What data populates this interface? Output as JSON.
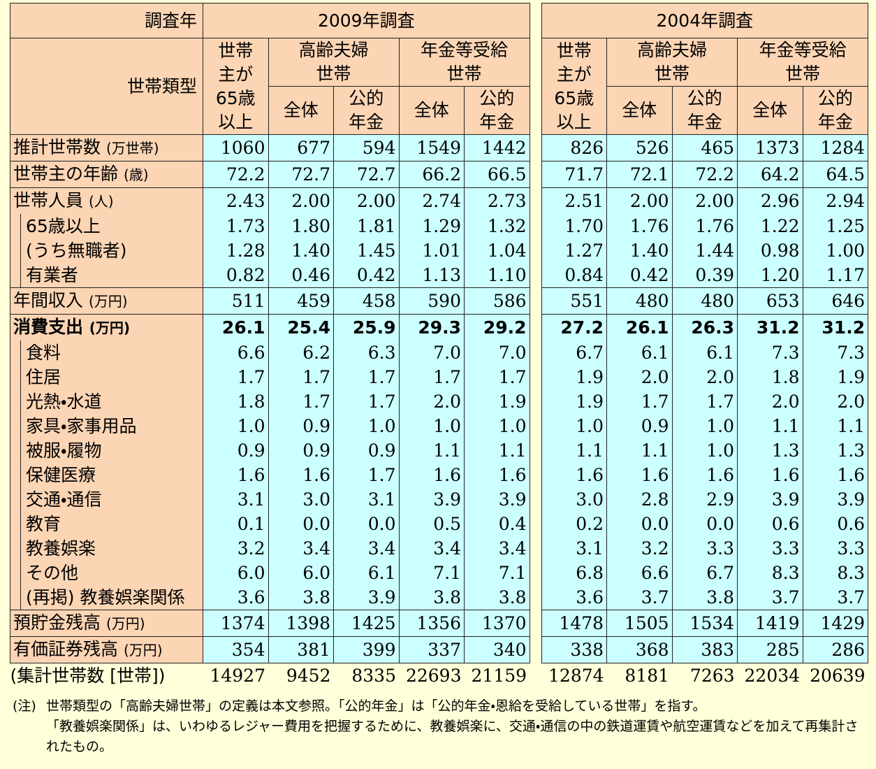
{
  "table": {
    "header": {
      "survey_year": "調査年",
      "year_2009": "2009年調査",
      "year_2004": "2004年調査",
      "type": "世帯類型",
      "groups": [
        "世帯\n主が\n65歳\n以上",
        "高齢夫婦\n世帯",
        "年金等受給\n世帯"
      ],
      "subs": [
        "全体",
        "公的\n年金"
      ]
    },
    "rows": [
      {
        "label": "推計世帯数",
        "unit": "(万世帯)",
        "values": [
          "1060",
          "677",
          "594",
          "1549",
          "1442",
          "826",
          "526",
          "465",
          "1373",
          "1284"
        ]
      },
      {
        "label": "世帯主の年齢",
        "unit": "(歳)",
        "values": [
          "72.2",
          "72.7",
          "72.7",
          "66.2",
          "66.5",
          "71.7",
          "72.1",
          "72.2",
          "64.2",
          "64.5"
        ]
      },
      {
        "label": "世帯人員",
        "unit": "(人)",
        "values": [
          "2.43",
          "2.00",
          "2.00",
          "2.74",
          "2.73",
          "2.51",
          "2.00",
          "2.00",
          "2.96",
          "2.94"
        ],
        "breakdown": [
          {
            "label": "65歳以上",
            "values": [
              "1.73",
              "1.80",
              "1.81",
              "1.29",
              "1.32",
              "1.70",
              "1.76",
              "1.76",
              "1.22",
              "1.25"
            ]
          },
          {
            "label": "(うち無職者)",
            "values": [
              "1.28",
              "1.40",
              "1.45",
              "1.01",
              "1.04",
              "1.27",
              "1.40",
              "1.44",
              "0.98",
              "1.00"
            ]
          },
          {
            "label": "有業者",
            "values": [
              "0.82",
              "0.46",
              "0.42",
              "1.13",
              "1.10",
              "0.84",
              "0.42",
              "0.39",
              "1.20",
              "1.17"
            ]
          }
        ]
      },
      {
        "label": "年間収入",
        "unit": "(万円)",
        "values": [
          "511",
          "459",
          "458",
          "590",
          "586",
          "551",
          "480",
          "480",
          "653",
          "646"
        ]
      },
      {
        "label": "消費支出",
        "unit": "(万円)",
        "bold": true,
        "values": [
          "26.1",
          "25.4",
          "25.9",
          "29.3",
          "29.2",
          "27.2",
          "26.1",
          "26.3",
          "31.2",
          "31.2"
        ],
        "breakdown": [
          {
            "label": "食料",
            "values": [
              "6.6",
              "6.2",
              "6.3",
              "7.0",
              "7.0",
              "6.7",
              "6.1",
              "6.1",
              "7.3",
              "7.3"
            ]
          },
          {
            "label": "住居",
            "values": [
              "1.7",
              "1.7",
              "1.7",
              "1.7",
              "1.7",
              "1.9",
              "2.0",
              "2.0",
              "1.8",
              "1.9"
            ]
          },
          {
            "label": "光熱・水道",
            "values": [
              "1.8",
              "1.7",
              "1.7",
              "2.0",
              "1.9",
              "1.9",
              "1.7",
              "1.7",
              "2.0",
              "2.0"
            ]
          },
          {
            "label": "家具・家事用品",
            "values": [
              "1.0",
              "0.9",
              "1.0",
              "1.0",
              "1.0",
              "1.0",
              "0.9",
              "1.0",
              "1.1",
              "1.1"
            ]
          },
          {
            "label": "被服・履物",
            "values": [
              "0.9",
              "0.9",
              "0.9",
              "1.1",
              "1.1",
              "1.1",
              "1.1",
              "1.0",
              "1.3",
              "1.3"
            ]
          },
          {
            "label": "保健医療",
            "values": [
              "1.6",
              "1.6",
              "1.7",
              "1.6",
              "1.6",
              "1.6",
              "1.6",
              "1.6",
              "1.6",
              "1.6"
            ]
          },
          {
            "label": "交通・通信",
            "values": [
              "3.1",
              "3.0",
              "3.1",
              "3.9",
              "3.9",
              "3.0",
              "2.8",
              "2.9",
              "3.9",
              "3.9"
            ]
          },
          {
            "label": "教育",
            "values": [
              "0.1",
              "0.0",
              "0.0",
              "0.5",
              "0.4",
              "0.2",
              "0.0",
              "0.0",
              "0.6",
              "0.6"
            ]
          },
          {
            "label": "教養娯楽",
            "values": [
              "3.2",
              "3.4",
              "3.4",
              "3.4",
              "3.4",
              "3.1",
              "3.2",
              "3.3",
              "3.3",
              "3.3"
            ]
          },
          {
            "label": "その他",
            "values": [
              "6.0",
              "6.0",
              "6.1",
              "7.1",
              "7.1",
              "6.8",
              "6.6",
              "6.7",
              "8.3",
              "8.3"
            ]
          },
          {
            "label": "(再掲) 教養娯楽関係",
            "values": [
              "3.6",
              "3.8",
              "3.9",
              "3.8",
              "3.8",
              "3.6",
              "3.7",
              "3.8",
              "3.7",
              "3.7"
            ]
          }
        ]
      },
      {
        "label": "預貯金残高",
        "unit": "(万円)",
        "values": [
          "1374",
          "1398",
          "1425",
          "1356",
          "1370",
          "1478",
          "1505",
          "1534",
          "1419",
          "1429"
        ]
      },
      {
        "label": "有価証券残高",
        "unit": "(万円)",
        "values": [
          "354",
          "381",
          "399",
          "337",
          "340",
          "338",
          "368",
          "383",
          "285",
          "286"
        ]
      }
    ],
    "footer": {
      "label": "(集計世帯数 [世帯])",
      "values": [
        "14927",
        "9452",
        "8335",
        "22693",
        "21159",
        "12874",
        "8181",
        "7263",
        "22034",
        "20639"
      ]
    },
    "notes": {
      "mark": "(注)",
      "lines": [
        "世帯類型の「高齢夫婦世帯」の定義は本文参照。「公的年金」は「公的年金・恩給を受給している世帯」を指す。",
        "「教養娯楽関係」は、いわゆるレジャー費用を把握するために、教養娯楽に、交通・通信の中の鉄道運賃や航空運賃などを加えて再集計されたもの。"
      ]
    }
  }
}
